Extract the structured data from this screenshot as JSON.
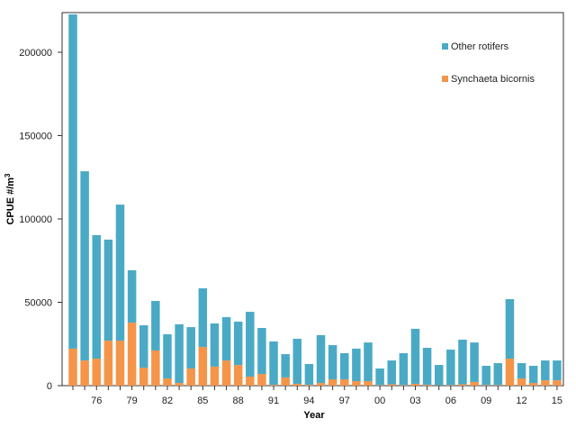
{
  "chart_data": {
    "type": "bar",
    "stacked": true,
    "title": "",
    "xlabel": "Year",
    "ylabel": "CPUE  #/m",
    "ylabel_superscript": "3",
    "ylim": [
      0,
      224000
    ],
    "yticks": [
      0,
      50000,
      100000,
      150000,
      200000
    ],
    "ytick_labels": [
      "0",
      "50000",
      "100000",
      "150000",
      "200000"
    ],
    "xtick_labels": [
      "76",
      "79",
      "82",
      "85",
      "88",
      "91",
      "94",
      "97",
      "00",
      "03",
      "06",
      "09",
      "12",
      "15"
    ],
    "categories": [
      "1974",
      "1975",
      "1976",
      "1977",
      "1978",
      "1979",
      "1980",
      "1981",
      "1982",
      "1983",
      "1984",
      "1985",
      "1986",
      "1987",
      "1988",
      "1989",
      "1990",
      "1991",
      "1992",
      "1993",
      "1994",
      "1995",
      "1996",
      "1997",
      "1998",
      "1999",
      "2000",
      "2001",
      "2002",
      "2003",
      "2004",
      "2005",
      "2006",
      "2007",
      "2008",
      "2009",
      "2010",
      "2011",
      "2012",
      "2013",
      "2014",
      "2015"
    ],
    "legend_position": "top-right",
    "series": [
      {
        "name": "Synchaeta bicornis",
        "color": "#f5954a",
        "values": [
          22200,
          15100,
          16200,
          27000,
          27000,
          37800,
          10800,
          21100,
          4300,
          1600,
          10300,
          23200,
          11400,
          15100,
          12400,
          5400,
          7000,
          500,
          4900,
          1100,
          500,
          1600,
          3800,
          3800,
          2700,
          2700,
          300,
          800,
          300,
          1100,
          500,
          200,
          300,
          800,
          2200,
          300,
          300,
          16200,
          4300,
          1600,
          3200,
          3200
        ]
      },
      {
        "name": "Other rotifers",
        "color": "#4aaac6",
        "values": [
          200500,
          113500,
          74100,
          60600,
          81600,
          31400,
          25400,
          29700,
          26500,
          35200,
          24800,
          35200,
          25900,
          26000,
          26000,
          38900,
          27600,
          26000,
          14000,
          27000,
          12500,
          28700,
          20500,
          15700,
          19500,
          23200,
          10000,
          14300,
          19200,
          33000,
          22200,
          12200,
          21300,
          26800,
          23700,
          11600,
          13200,
          35700,
          9200,
          10300,
          11900,
          11900
        ]
      }
    ]
  }
}
